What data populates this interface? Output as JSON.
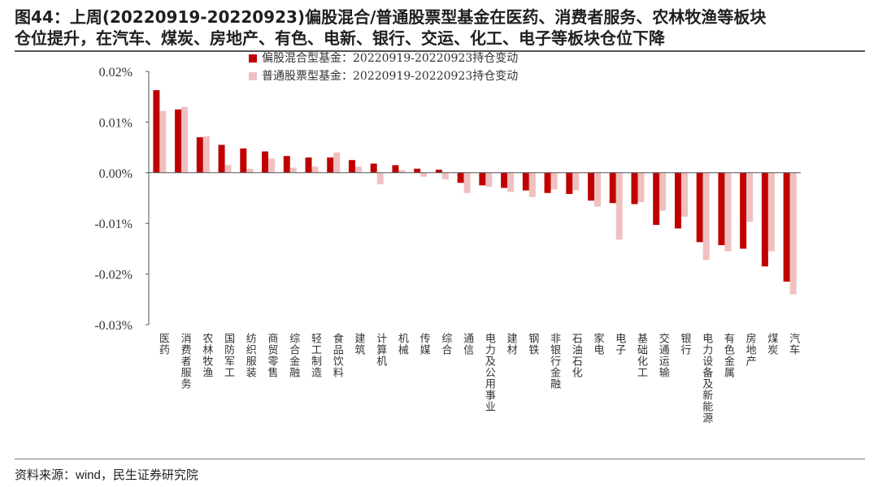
{
  "header": {
    "title_line1": "图44：上周(20220919-20220923)偏股混合/普通股票型基金在医药、消费者服务、农林牧渔等板块",
    "title_line2": "仓位提升，在汽车、煤炭、房地产、有色、电新、银行、交运、化工、电子等板块仓位下降"
  },
  "footer": {
    "source": "资料来源：wind，民生证券研究院"
  },
  "colors": {
    "series1": "#c00000",
    "series2": "#f0c0c0"
  },
  "chart_data": {
    "type": "bar",
    "title": "",
    "xlabel": "",
    "ylabel": "",
    "ylim": [
      -0.03,
      0.02
    ],
    "yticks": [
      {
        "value": 0.02,
        "label": "0.02%"
      },
      {
        "value": 0.01,
        "label": "0.01%"
      },
      {
        "value": 0.0,
        "label": "0.00%"
      },
      {
        "value": -0.01,
        "label": "-0.01%"
      },
      {
        "value": -0.02,
        "label": "-0.02%"
      },
      {
        "value": -0.03,
        "label": "-0.03%"
      }
    ],
    "legend": "top-left",
    "categories": [
      "医药",
      "消费者服务",
      "农林牧渔",
      "国防军工",
      "纺织服装",
      "商贸零售",
      "综合金融",
      "轻工制造",
      "食品饮料",
      "建筑",
      "计算机",
      "机械",
      "传媒",
      "综合",
      "通信",
      "电力及公用事业",
      "建材",
      "钢铁",
      "非银行金融",
      "石油石化",
      "家电",
      "电子",
      "基础化工",
      "交通运输",
      "银行",
      "电力设备及新能源",
      "有色金属",
      "房地产",
      "煤炭",
      "汽车"
    ],
    "series": [
      {
        "name": "偏股混合型基金：20220919-20220923持仓变动",
        "values": [
          0.0163,
          0.0125,
          0.007,
          0.0055,
          0.0048,
          0.0042,
          0.0033,
          0.003,
          0.003,
          0.0025,
          0.0018,
          0.0015,
          0.0008,
          0.0006,
          -0.002,
          -0.0025,
          -0.003,
          -0.0035,
          -0.004,
          -0.0042,
          -0.0055,
          -0.006,
          -0.0062,
          -0.0103,
          -0.011,
          -0.0137,
          -0.0143,
          -0.015,
          -0.0185,
          -0.0215
        ]
      },
      {
        "name": "普通股票型基金：20220919-20220923持仓变动",
        "values": [
          0.0122,
          0.013,
          0.0072,
          0.0015,
          0.0008,
          0.0028,
          0.001,
          0.0012,
          0.004,
          0.0012,
          -0.0023,
          0.0005,
          -0.0008,
          -0.0013,
          -0.004,
          -0.0028,
          -0.0038,
          -0.0048,
          -0.0033,
          -0.0035,
          -0.0067,
          -0.0132,
          -0.0058,
          -0.0075,
          -0.0087,
          -0.0172,
          -0.0155,
          -0.0097,
          -0.0155,
          -0.024
        ]
      }
    ]
  }
}
